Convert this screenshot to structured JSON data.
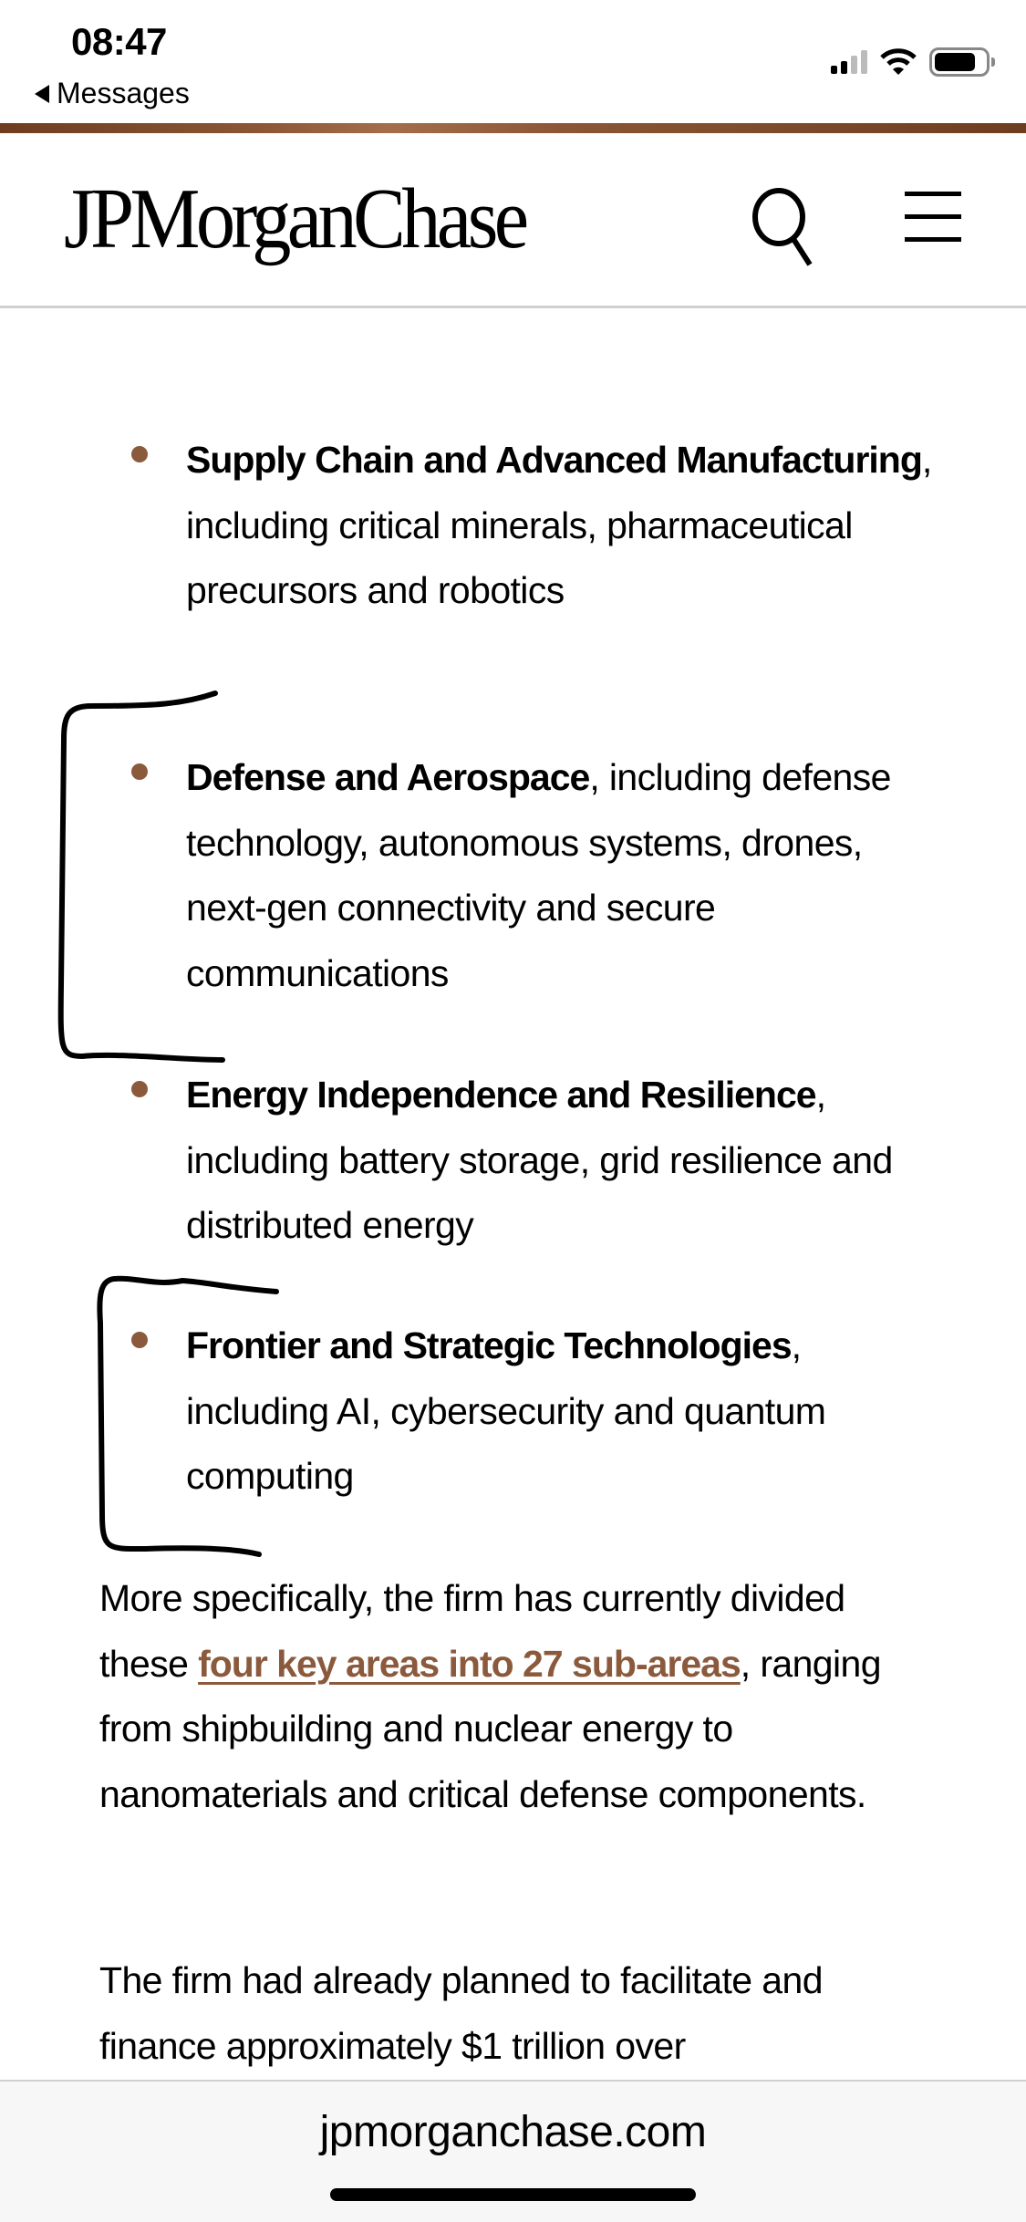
{
  "status_bar": {
    "time": "08:47",
    "back_label": "Messages"
  },
  "header": {
    "logo": "JPMorganChase",
    "brand_color": "#8b5a3c"
  },
  "bullets": [
    {
      "title": "Supply Chain and Advanced Manufacturing",
      "text": ", including critical minerals, pharmaceutical precursors and robotics"
    },
    {
      "title": "Defense and Aerospace",
      "text": ", including defense technology, autonomous systems, drones, next-gen connectivity and secure communications"
    },
    {
      "title": "Energy Independence and Resilience",
      "text": ", including battery storage, grid resilience and distributed energy"
    },
    {
      "title": "Frontier and Strategic Technologies",
      "text": ", including AI, cybersecurity and quantum computing"
    }
  ],
  "paragraphs": [
    {
      "before": "More specifically, the firm has currently divided these ",
      "link": "four key areas into 27 sub-areas",
      "after": ", ranging from shipbuilding and nuclear energy to nanomaterials and critical defense components."
    },
    {
      "text": "The firm had already planned to facilitate and finance approximately $1 trillion over"
    }
  ],
  "browser": {
    "url": "jpmorganchase.com"
  }
}
